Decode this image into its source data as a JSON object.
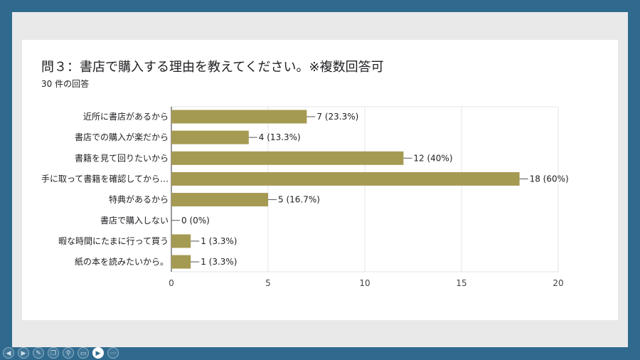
{
  "header": {
    "title": "問３：書店で購入する理由を教えてください。※複数回答可",
    "subtitle": "30 件の回答"
  },
  "chart_data": {
    "type": "bar",
    "orientation": "horizontal",
    "title": "問３：書店で購入する理由を教えてください。※複数回答可",
    "subtitle": "30 件の回答",
    "categories": [
      "近所に書店があるから",
      "書店での購入が楽だから",
      "書籍を見て回りたいから",
      "手に取って書籍を確認してから…",
      "特典があるから",
      "書店で購入しない",
      "暇な時間にたまに行って買う",
      "紙の本を読みたいから。"
    ],
    "values": [
      7,
      4,
      12,
      18,
      5,
      0,
      1,
      1
    ],
    "data_labels": [
      "7 (23.3%)",
      "4 (13.3%)",
      "12 (40%)",
      "18 (60%)",
      "5 (16.7%)",
      "0 (0%)",
      "1 (3.3%)",
      "1 (3.3%)"
    ],
    "xlim": [
      0,
      20
    ],
    "x_ticks": [
      0,
      5,
      10,
      15,
      20
    ],
    "grid": true,
    "bar_color": "#a59a52"
  },
  "toolbar": {
    "icons": [
      "prev-icon",
      "next-icon",
      "pen-icon",
      "copy-icon",
      "zoom-icon",
      "subtitles-icon",
      "camera-icon",
      "more-icon"
    ]
  }
}
